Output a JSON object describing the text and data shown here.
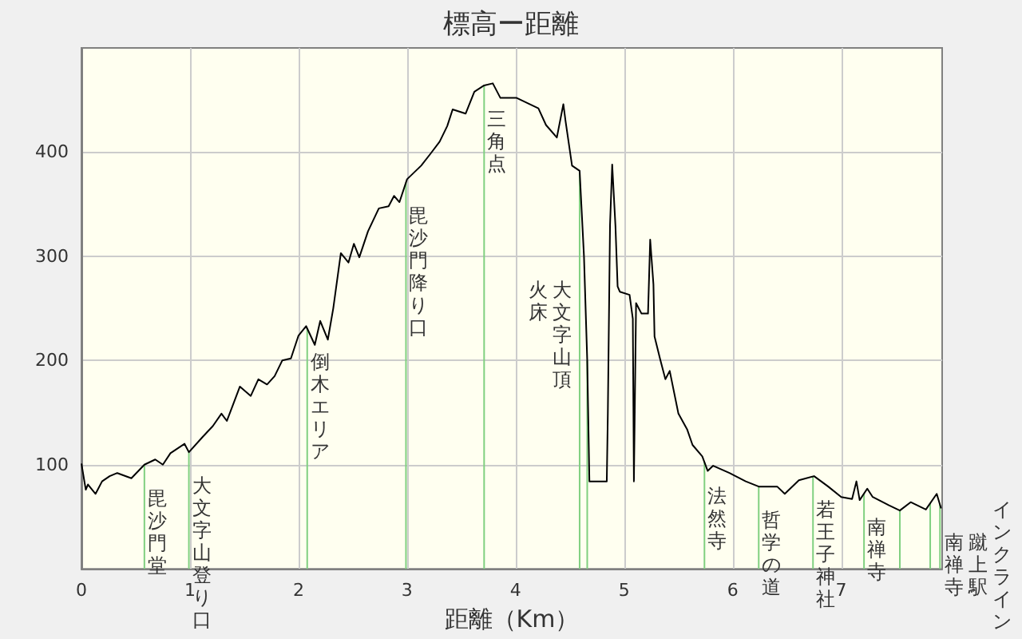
{
  "chart_data": {
    "type": "line",
    "title": "標高ー距離",
    "xlabel": "距離（Km）",
    "x": [
      0,
      0.04,
      0.06,
      0.13,
      0.19,
      0.26,
      0.33,
      0.46,
      0.58,
      0.68,
      0.75,
      0.82,
      0.95,
      0.99,
      1.12,
      1.21,
      1.29,
      1.34,
      1.46,
      1.56,
      1.63,
      1.71,
      1.78,
      1.85,
      1.93,
      2.0,
      2.07,
      2.15,
      2.2,
      2.27,
      2.32,
      2.39,
      2.46,
      2.51,
      2.56,
      2.64,
      2.74,
      2.83,
      2.88,
      2.93,
      3.0,
      3.13,
      3.22,
      3.3,
      3.37,
      3.42,
      3.54,
      3.62,
      3.71,
      3.79,
      3.86,
      4.01,
      4.21,
      4.28,
      4.38,
      4.44,
      4.46,
      4.52,
      4.59,
      4.63,
      4.66,
      4.68,
      4.84,
      4.85,
      4.87,
      4.89,
      4.92,
      4.94,
      4.96,
      5.05,
      5.08,
      5.09,
      5.11,
      5.16,
      5.22,
      5.24,
      5.27,
      5.28,
      5.33,
      5.38,
      5.42,
      5.5,
      5.58,
      5.63,
      5.72,
      5.77,
      5.82,
      5.97,
      6.12,
      6.24,
      6.41,
      6.48,
      6.61,
      6.75,
      6.88,
      7.0,
      7.1,
      7.14,
      7.17,
      7.24,
      7.29,
      7.44,
      7.54,
      7.64,
      7.78,
      7.88,
      7.92
    ],
    "series": [
      {
        "color": "#000000",
        "values": [
          101,
          76,
          81,
          72,
          84,
          89,
          92,
          87,
          100,
          105,
          100,
          111,
          120,
          112,
          127,
          137,
          149,
          142,
          175,
          166,
          182,
          177,
          185,
          200,
          202,
          224,
          233,
          215,
          238,
          220,
          250,
          303,
          294,
          312,
          299,
          324,
          346,
          348,
          358,
          352,
          374,
          387,
          399,
          410,
          425,
          441,
          437,
          458,
          464,
          466,
          452,
          452,
          442,
          426,
          414,
          446,
          430,
          387,
          382,
          300,
          200,
          84,
          84,
          150,
          330,
          388,
          329,
          271,
          266,
          263,
          240,
          84,
          255,
          245,
          245,
          316,
          273,
          223,
          202,
          182,
          190,
          149,
          134,
          119,
          108,
          94,
          99,
          92,
          84,
          79,
          79,
          72,
          85,
          89,
          79,
          69,
          67,
          84,
          66,
          77,
          69,
          61,
          56,
          64,
          57,
          72,
          58
        ]
      }
    ],
    "xlim": [
      0,
      7.93
    ],
    "xticks": [
      0,
      1,
      2,
      3,
      4,
      5,
      6,
      7
    ],
    "ylim": [
      0,
      500
    ],
    "yticks": [
      100,
      200,
      300,
      400
    ],
    "grid": true,
    "ref_lines": [
      {
        "axis": "x",
        "value": 0.58,
        "label": "毘沙門堂",
        "color": "#80d080"
      },
      {
        "axis": "x",
        "value": 0.99,
        "label": "大文字山登り口",
        "color": "#80d080"
      },
      {
        "axis": "x",
        "value": 2.08,
        "label": "倒木エリア",
        "color": "#80d080"
      },
      {
        "axis": "x",
        "value": 2.99,
        "label": "毘沙門降り口",
        "color": "#80d080"
      },
      {
        "axis": "x",
        "value": 3.71,
        "label": "三角点",
        "color": "#80d080"
      },
      {
        "axis": "x",
        "value": 4.59,
        "label": "火床",
        "color": "#80d080"
      },
      {
        "axis": "x",
        "value": 4.66,
        "label": "大文字山頂",
        "color": "#80d080"
      },
      {
        "axis": "x",
        "value": 5.74,
        "label": "法然寺",
        "color": "#80d080"
      },
      {
        "axis": "x",
        "value": 6.24,
        "label": "哲学の道",
        "color": "#80d080"
      },
      {
        "axis": "x",
        "value": 6.74,
        "label": "若王子神社",
        "color": "#80d080"
      },
      {
        "axis": "x",
        "value": 7.21,
        "label": "南禅寺",
        "color": "#80d080"
      },
      {
        "axis": "x",
        "value": 7.54,
        "label": "南禅寺",
        "color": "#80d080"
      },
      {
        "axis": "x",
        "value": 7.82,
        "label": "蹴上駅",
        "color": "#80d080"
      },
      {
        "axis": "x",
        "value": 7.91,
        "label": "インクライン",
        "color": "#80d080"
      }
    ]
  }
}
